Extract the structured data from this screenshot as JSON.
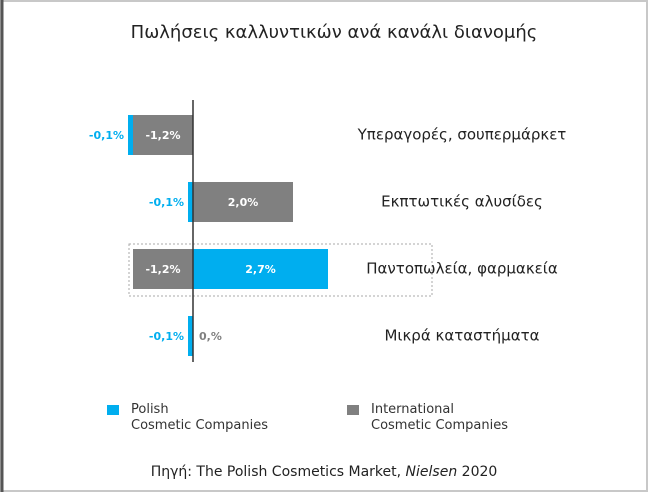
{
  "chart_data": {
    "type": "diverging_bar",
    "title": "Πωλήσεις καλλυντικών ανά κανάλι διανομής",
    "categories": [
      "Υπεραγορές, σουπερμάρκετ",
      "Εκπτωτικές αλυσίδες",
      "Παντοπωλεία, φαρμακεία",
      "Μικρά καταστήματα"
    ],
    "series": [
      {
        "name": "Polish\nCosmetic Companies",
        "color": "#00aeef",
        "values": [
          -0.1,
          -0.1,
          2.7,
          -0.1
        ],
        "value_labels": [
          "-0,1%",
          "-0,1%",
          "2,7%",
          "-0,1%"
        ]
      },
      {
        "name": "International\nCosmetic Companies",
        "color": "#808080",
        "values": [
          -1.2,
          2.0,
          -1.2,
          0
        ],
        "value_labels": [
          "-1,2%",
          "2,0%",
          "-1,2%",
          "0,%"
        ]
      }
    ],
    "source": {
      "text": "Πηγή: The Polish Cosmetics Market,",
      "italic": "Nielsen",
      "year": "2020"
    }
  }
}
